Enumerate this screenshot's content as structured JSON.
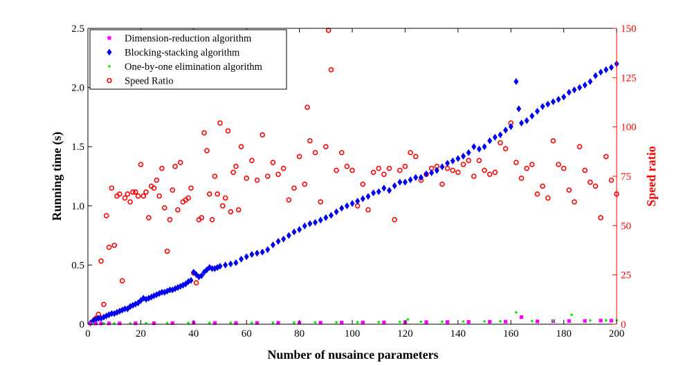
{
  "chart_data": {
    "type": "scatter",
    "title": "",
    "xlabel": "Number of nusaince parameters",
    "ylabel_left": "Running time (s)",
    "ylabel_right": "Speed ratio",
    "xlim": [
      0,
      200
    ],
    "ylim_left": [
      0,
      2.5
    ],
    "ylim_right": [
      0,
      150
    ],
    "xticks": [
      0,
      20,
      40,
      60,
      80,
      100,
      120,
      140,
      160,
      180,
      200
    ],
    "yticks_left": [
      0,
      0.5,
      1.0,
      1.5,
      2.0,
      2.5
    ],
    "ytick_labels_left": [
      "0",
      "0.5",
      "1.0",
      "1.5",
      "2.0",
      "2.5"
    ],
    "yticks_right": [
      0,
      25,
      50,
      75,
      100,
      125,
      150
    ],
    "grid": false,
    "legend_position": "top-left",
    "colors": {
      "left_axis": "#000000",
      "right_axis": "#ff0000"
    },
    "series": [
      {
        "name": "Dimension-reduction algorithm",
        "axis": "left",
        "marker": "square",
        "color": "#ff00ff",
        "sampled": true,
        "x": [
          1,
          3,
          5,
          8,
          12,
          18,
          25,
          32,
          40,
          48,
          56,
          64,
          72,
          80,
          88,
          96,
          104,
          112,
          120,
          128,
          136,
          144,
          152,
          158,
          164,
          170,
          176,
          182,
          188,
          194,
          198
        ],
        "y": [
          0.005,
          0.006,
          0.006,
          0.007,
          0.007,
          0.008,
          0.008,
          0.009,
          0.012,
          0.01,
          0.01,
          0.011,
          0.012,
          0.012,
          0.013,
          0.014,
          0.015,
          0.016,
          0.017,
          0.018,
          0.019,
          0.02,
          0.021,
          0.022,
          0.06,
          0.024,
          0.026,
          0.027,
          0.028,
          0.03,
          0.03
        ]
      },
      {
        "name": "Blocking-stacking algorithm",
        "axis": "left",
        "marker": "diamond",
        "color": "#0000ee",
        "sampled": true,
        "x": [
          1,
          2,
          3,
          4,
          5,
          6,
          7,
          8,
          9,
          10,
          11,
          12,
          13,
          14,
          15,
          16,
          17,
          18,
          19,
          20,
          21,
          22,
          23,
          24,
          25,
          26,
          27,
          28,
          29,
          30,
          31,
          32,
          33,
          34,
          35,
          36,
          37,
          38,
          39,
          40,
          41,
          42,
          43,
          44,
          45,
          46,
          47,
          48,
          49,
          50,
          52,
          54,
          56,
          58,
          60,
          62,
          64,
          66,
          68,
          70,
          72,
          74,
          76,
          78,
          80,
          82,
          84,
          86,
          88,
          90,
          92,
          94,
          96,
          98,
          100,
          102,
          104,
          106,
          108,
          110,
          112,
          114,
          116,
          118,
          120,
          122,
          124,
          126,
          128,
          130,
          132,
          134,
          136,
          138,
          140,
          142,
          144,
          146,
          148,
          150,
          152,
          154,
          156,
          158,
          160,
          162,
          163,
          164,
          166,
          168,
          170,
          172,
          174,
          176,
          178,
          180,
          182,
          184,
          186,
          188,
          190,
          192,
          194,
          196,
          198,
          200
        ],
        "y": [
          0.01,
          0.03,
          0.04,
          0.05,
          0.05,
          0.06,
          0.07,
          0.08,
          0.09,
          0.09,
          0.1,
          0.11,
          0.12,
          0.13,
          0.13,
          0.15,
          0.16,
          0.17,
          0.18,
          0.2,
          0.22,
          0.21,
          0.22,
          0.23,
          0.24,
          0.25,
          0.26,
          0.27,
          0.27,
          0.28,
          0.29,
          0.29,
          0.3,
          0.31,
          0.32,
          0.33,
          0.34,
          0.36,
          0.37,
          0.44,
          0.42,
          0.4,
          0.41,
          0.44,
          0.46,
          0.48,
          0.47,
          0.47,
          0.48,
          0.49,
          0.5,
          0.51,
          0.52,
          0.55,
          0.57,
          0.59,
          0.6,
          0.61,
          0.63,
          0.67,
          0.7,
          0.72,
          0.75,
          0.78,
          0.8,
          0.83,
          0.85,
          0.86,
          0.88,
          0.9,
          0.92,
          0.95,
          0.98,
          1.0,
          1.02,
          1.04,
          1.06,
          1.08,
          1.11,
          1.12,
          1.15,
          1.13,
          1.17,
          1.2,
          1.2,
          1.22,
          1.24,
          1.24,
          1.27,
          1.28,
          1.3,
          1.33,
          1.36,
          1.38,
          1.4,
          1.42,
          1.45,
          1.5,
          1.48,
          1.5,
          1.55,
          1.58,
          1.6,
          1.64,
          1.67,
          2.05,
          1.82,
          1.7,
          1.72,
          1.76,
          1.8,
          1.84,
          1.86,
          1.88,
          1.9,
          1.92,
          1.96,
          1.98,
          2.0,
          2.02,
          2.05,
          2.1,
          2.13,
          2.15,
          2.17,
          2.2
        ]
      },
      {
        "name": "One-by-one elimination algorithm",
        "axis": "left",
        "marker": "dot",
        "color": "#00ee00",
        "sampled": true,
        "x": [
          2,
          6,
          10,
          16,
          22,
          30,
          38,
          46,
          54,
          62,
          70,
          78,
          86,
          94,
          102,
          110,
          118,
          121,
          126,
          134,
          142,
          150,
          156,
          162,
          168,
          176,
          183,
          190,
          196,
          200
        ],
        "y": [
          0.005,
          0.006,
          0.006,
          0.007,
          0.008,
          0.009,
          0.011,
          0.011,
          0.012,
          0.012,
          0.013,
          0.014,
          0.015,
          0.016,
          0.017,
          0.018,
          0.02,
          0.04,
          0.021,
          0.022,
          0.023,
          0.024,
          0.025,
          0.1,
          0.027,
          0.03,
          0.08,
          0.032,
          0.033,
          0.034
        ]
      },
      {
        "name": "Speed Ratio",
        "axis": "right",
        "marker": "circle",
        "color": "#ff0000",
        "sampled": true,
        "x": [
          3,
          4,
          5,
          6,
          7,
          8,
          9,
          10,
          11,
          12,
          13,
          14,
          15,
          16,
          17,
          18,
          19,
          20,
          21,
          22,
          23,
          24,
          25,
          26,
          27,
          28,
          29,
          30,
          31,
          32,
          33,
          34,
          35,
          36,
          37,
          38,
          39,
          40,
          41,
          42,
          43,
          44,
          45,
          46,
          47,
          48,
          49,
          50,
          51,
          52,
          53,
          54,
          55,
          56,
          57,
          58,
          60,
          62,
          64,
          66,
          68,
          70,
          72,
          74,
          76,
          78,
          80,
          82,
          83,
          84,
          86,
          88,
          90,
          91,
          92,
          94,
          96,
          98,
          100,
          102,
          104,
          106,
          108,
          110,
          112,
          114,
          116,
          118,
          120,
          122,
          124,
          126,
          128,
          130,
          132,
          134,
          136,
          138,
          140,
          142,
          144,
          146,
          148,
          150,
          152,
          154,
          156,
          158,
          160,
          162,
          164,
          166,
          168,
          170,
          172,
          174,
          176,
          178,
          180,
          182,
          184,
          186,
          188,
          190,
          192,
          194,
          196,
          198,
          200
        ],
        "y": [
          3,
          5,
          32,
          10,
          55,
          39,
          69,
          40,
          65,
          66,
          22,
          64,
          66,
          62,
          67,
          67,
          65,
          81,
          65,
          67,
          54,
          70,
          69,
          73,
          65,
          79,
          59,
          37,
          53,
          68,
          80,
          58,
          82,
          62,
          63,
          64,
          69,
          26,
          21,
          53,
          54,
          97,
          88,
          66,
          53,
          75,
          66,
          102,
          60,
          64,
          98,
          57,
          77,
          80,
          58,
          90,
          74,
          83,
          73,
          96,
          75,
          82,
          76,
          79,
          63,
          69,
          85,
          71,
          110,
          93,
          87,
          62,
          90,
          149,
          129,
          78,
          87,
          80,
          78,
          60,
          71,
          58,
          77,
          79,
          76,
          79,
          53,
          78,
          80,
          87,
          85,
          73,
          76,
          79,
          80,
          71,
          79,
          78,
          77,
          81,
          83,
          75,
          83,
          78,
          76,
          77,
          92,
          89,
          102,
          82,
          74,
          79,
          81,
          66,
          70,
          64,
          93,
          81,
          79,
          68,
          62,
          90,
          78,
          72,
          70,
          54,
          85,
          73,
          66
        ]
      }
    ]
  }
}
